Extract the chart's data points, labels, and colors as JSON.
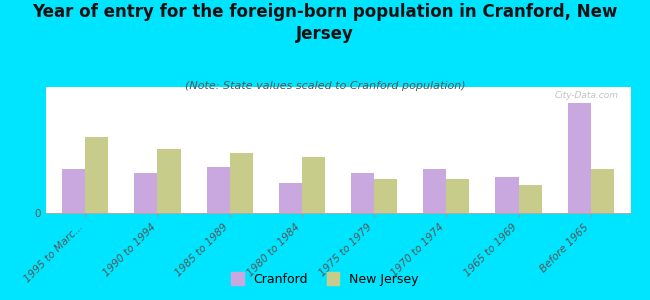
{
  "title": "Year of entry for the foreign-born population in Cranford, New\nJersey",
  "subtitle": "(Note: State values scaled to Cranford population)",
  "categories": [
    "1995 to Marc...",
    "1990 to 1994",
    "1985 to 1989",
    "1980 to 1984",
    "1975 to 1979",
    "1970 to 1974",
    "1965 to 1969",
    "Before 1965"
  ],
  "cranford_values": [
    22,
    20,
    23,
    15,
    20,
    22,
    18,
    55
  ],
  "nj_values": [
    38,
    32,
    30,
    28,
    17,
    17,
    14,
    22
  ],
  "cranford_color": "#c9a8e0",
  "nj_color": "#c8cc8a",
  "background_color": "#00e5ff",
  "plot_bg_top": "#dde8be",
  "plot_bg_bottom": "#f0f3e2",
  "watermark": "City-Data.com",
  "title_fontsize": 12,
  "subtitle_fontsize": 8,
  "tick_fontsize": 7.5,
  "legend_fontsize": 9
}
